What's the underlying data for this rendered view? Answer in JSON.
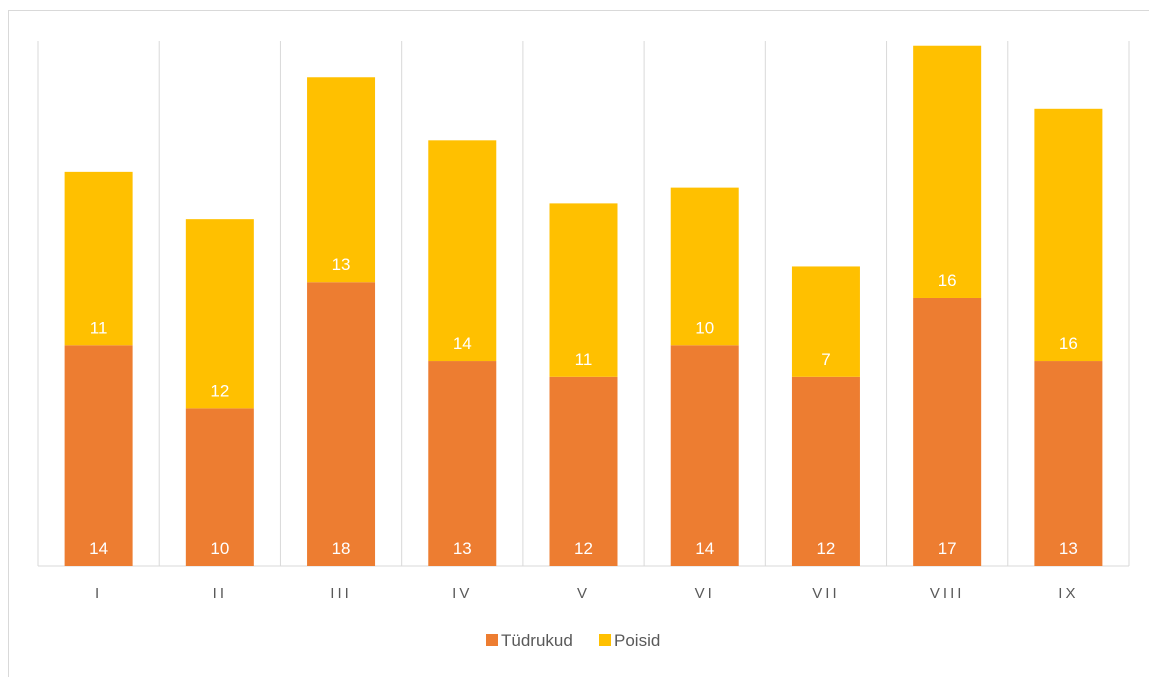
{
  "chart_data": {
    "type": "bar",
    "stacked": true,
    "title": "",
    "xlabel": "",
    "ylabel": "",
    "categories": [
      "I",
      "II",
      "III",
      "IV",
      "V",
      "VI",
      "VII",
      "VIII",
      "IX"
    ],
    "series": [
      {
        "name": "Tüdrukud",
        "color": "#ED7D31",
        "values": [
          14,
          10,
          18,
          13,
          12,
          14,
          12,
          17,
          13
        ]
      },
      {
        "name": "Poisid",
        "color": "#FFC000",
        "values": [
          11,
          12,
          13,
          14,
          11,
          10,
          7,
          16,
          16
        ]
      }
    ],
    "ylim": [
      0,
      33.3
    ],
    "y_axis_visible": false,
    "grid": "vertical separators between categories",
    "legend_position": "bottom"
  }
}
